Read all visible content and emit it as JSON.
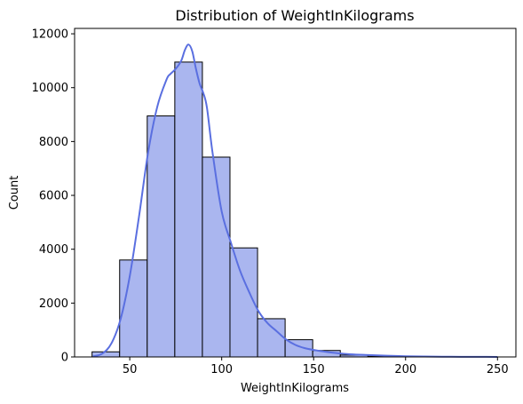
{
  "chart_data": {
    "type": "bar",
    "title": "Distribution of WeightInKilograms",
    "xlabel": "WeightInKilograms",
    "ylabel": "Count",
    "xlim": [
      20,
      260
    ],
    "ylim": [
      0,
      12200
    ],
    "x_ticks": [
      50,
      100,
      150,
      200,
      250
    ],
    "y_ticks": [
      0,
      2000,
      4000,
      6000,
      8000,
      10000,
      12000
    ],
    "bins": [
      {
        "x0": 29.5,
        "x1": 44.5,
        "count": 190
      },
      {
        "x0": 44.5,
        "x1": 59.5,
        "count": 3600
      },
      {
        "x0": 59.5,
        "x1": 74.5,
        "count": 8950
      },
      {
        "x0": 74.5,
        "x1": 89.5,
        "count": 10950
      },
      {
        "x0": 89.5,
        "x1": 104.5,
        "count": 7420
      },
      {
        "x0": 104.5,
        "x1": 119.5,
        "count": 4050
      },
      {
        "x0": 119.5,
        "x1": 134.5,
        "count": 1420
      },
      {
        "x0": 134.5,
        "x1": 149.5,
        "count": 640
      },
      {
        "x0": 149.5,
        "x1": 164.5,
        "count": 240
      },
      {
        "x0": 164.5,
        "x1": 179.5,
        "count": 70
      },
      {
        "x0": 179.5,
        "x1": 194.5,
        "count": 25
      },
      {
        "x0": 194.5,
        "x1": 209.5,
        "count": 10
      },
      {
        "x0": 209.5,
        "x1": 224.5,
        "count": 5
      },
      {
        "x0": 224.5,
        "x1": 239.5,
        "count": 3
      },
      {
        "x0": 239.5,
        "x1": 249.5,
        "count": 2
      }
    ],
    "kde": {
      "x": [
        30,
        35,
        40,
        45,
        50,
        55,
        60,
        65,
        70,
        72,
        75,
        78,
        80,
        82,
        84,
        86,
        88,
        90,
        92,
        95,
        100,
        105,
        110,
        115,
        120,
        125,
        130,
        135,
        140,
        145,
        150,
        160,
        170,
        180,
        190,
        200,
        210,
        220,
        230,
        240,
        250
      ],
      "y": [
        20,
        120,
        500,
        1400,
        3000,
        5200,
        7600,
        9300,
        10300,
        10500,
        10700,
        11000,
        11400,
        11600,
        11350,
        10700,
        10150,
        9800,
        9250,
        7600,
        5400,
        4250,
        3200,
        2400,
        1700,
        1250,
        950,
        650,
        450,
        330,
        260,
        160,
        100,
        70,
        45,
        25,
        15,
        10,
        6,
        4,
        2
      ]
    },
    "colors": {
      "bar_fill": "#aab6ef",
      "bar_edge": "#000000",
      "kde_line": "#5a6fe0"
    }
  }
}
